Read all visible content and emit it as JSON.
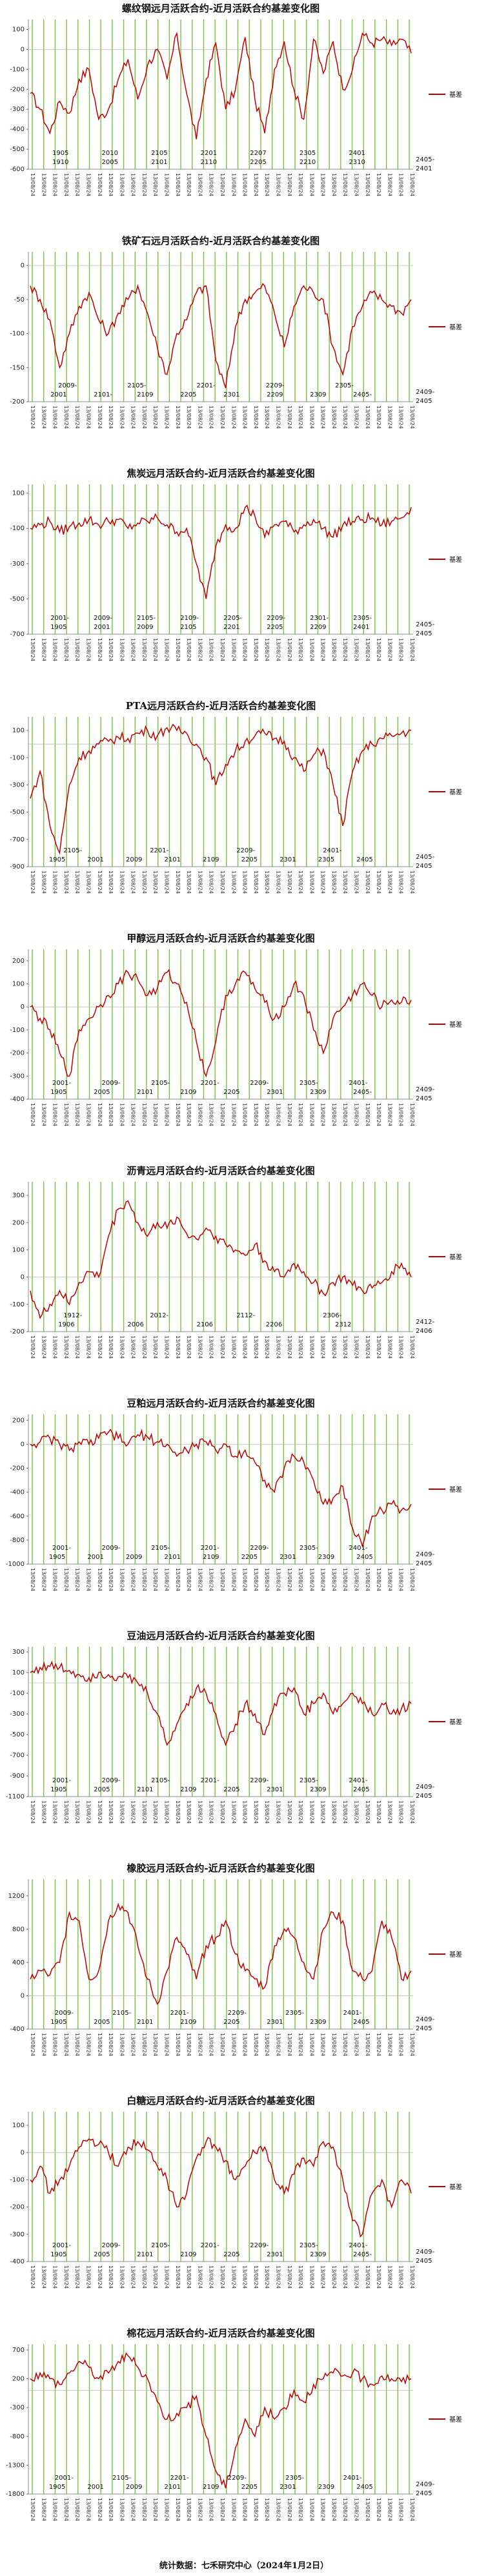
{
  "footer": "统计数据：七禾研究中心（2024年1月2日）",
  "xtick_label": "13/08/24",
  "series_color": "#c00000",
  "marker_color": "#7ac142",
  "chart_data": [
    {
      "type": "line",
      "title": "螺纹钢远月活跃合约-近月活跃合约基差变化图",
      "legend": "基差",
      "legend_position": "right",
      "yticks": [
        100,
        0,
        -100,
        -200,
        -300,
        -400,
        -500,
        -600
      ],
      "ylim": [
        -600,
        150
      ],
      "labels_top": [
        "1905",
        "2010",
        "2105",
        "2201",
        "2207",
        "2305",
        "2401"
      ],
      "labels_bottom": [
        "1910",
        "2005",
        "2101",
        "2110",
        "2205",
        "2210",
        "2310"
      ],
      "last_label_top": "2405-",
      "last_label_bottom": "2401",
      "series": [
        {
          "name": "基差",
          "values": [
            -220,
            -300,
            -420,
            -260,
            -320,
            -150,
            -100,
            -350,
            -300,
            -150,
            -50,
            -250,
            -80,
            0,
            -150,
            80,
            -220,
            -450,
            -150,
            30,
            -300,
            -200,
            60,
            -250,
            -420,
            -100,
            40,
            -200,
            -350,
            50,
            -120,
            40,
            -200,
            -100,
            80,
            30,
            50,
            20,
            50,
            -20
          ]
        }
      ]
    },
    {
      "type": "line",
      "title": "铁矿石远月活跃合约-近月活跃合约基差变化图",
      "legend": "基差",
      "legend_position": "right",
      "yticks": [
        0,
        -50,
        -100,
        -150,
        -200
      ],
      "ylim": [
        -200,
        20
      ],
      "labels_top": [
        "2009-",
        "2105-",
        "2201-",
        "2209-",
        "2305-"
      ],
      "labels_bottom": [
        "2001",
        "2101-",
        "2109",
        "2205",
        "2301",
        "2209",
        "2309",
        "2405-"
      ],
      "last_label_top": "2409-",
      "last_label_bottom": "2405",
      "series": [
        {
          "name": "基差",
          "values": [
            -30,
            -50,
            -80,
            -150,
            -100,
            -60,
            -40,
            -80,
            -100,
            -70,
            -50,
            -30,
            -70,
            -120,
            -160,
            -100,
            -80,
            -40,
            -30,
            -140,
            -180,
            -90,
            -50,
            -40,
            -30,
            -70,
            -120,
            -60,
            -30,
            -40,
            -50,
            -120,
            -160,
            -90,
            -60,
            -40,
            -50,
            -60,
            -70,
            -50
          ]
        }
      ]
    },
    {
      "type": "line",
      "title": "焦炭远月活跃合约-近月活跃合约基差变化图",
      "legend": "基差",
      "legend_position": "right",
      "yticks": [
        100,
        -100,
        -300,
        -500,
        -700
      ],
      "ylim": [
        -700,
        150
      ],
      "labels_top": [
        "2001-",
        "2009-",
        "2105-",
        "2109-",
        "2205-",
        "2209-",
        "2301-",
        "2305-"
      ],
      "labels_bottom": [
        "1905",
        "2001",
        "2009",
        "2105",
        "2201",
        "2205",
        "2209",
        "2401"
      ],
      "last_label_top": "2405-",
      "last_label_bottom": "2405",
      "series": [
        {
          "name": "基差",
          "values": [
            -100,
            -80,
            -60,
            -120,
            -90,
            -70,
            -50,
            -80,
            -60,
            -50,
            -100,
            -70,
            -60,
            -40,
            -80,
            -120,
            -100,
            -300,
            -500,
            -200,
            -80,
            -100,
            20,
            -30,
            -150,
            -80,
            -60,
            -120,
            -80,
            -50,
            -100,
            -150,
            -80,
            -60,
            -50,
            -40,
            -80,
            -60,
            -40,
            20
          ]
        }
      ]
    },
    {
      "type": "line",
      "title": "PTA远月活跃合约-近月活跃合约基差变化图",
      "legend": "基差",
      "legend_position": "right",
      "yticks": [
        100,
        -100,
        -300,
        -500,
        -700,
        -900
      ],
      "ylim": [
        -900,
        200
      ],
      "labels_top": [
        "2105-",
        "2201-",
        "2209-",
        "2401-"
      ],
      "labels_bottom": [
        "1905",
        "2001",
        "2009",
        "2101",
        "2109",
        "2205",
        "2301",
        "2305",
        "2405"
      ],
      "last_label_top": "2405-",
      "last_label_bottom": "2405",
      "series": [
        {
          "name": "基差",
          "values": [
            -400,
            -200,
            -600,
            -800,
            -300,
            -100,
            -50,
            0,
            20,
            50,
            40,
            80,
            100,
            60,
            120,
            100,
            80,
            0,
            -100,
            -300,
            -150,
            -50,
            20,
            60,
            80,
            40,
            20,
            -100,
            -200,
            -80,
            -40,
            -300,
            -600,
            -200,
            -50,
            0,
            40,
            60,
            80,
            100
          ]
        }
      ]
    },
    {
      "type": "line",
      "title": "甲醇远月活跃合约-近月活跃合约基差变化图",
      "legend": "基差",
      "legend_position": "right",
      "yticks": [
        200,
        100,
        0,
        -100,
        -200,
        -300,
        -400
      ],
      "ylim": [
        -400,
        250
      ],
      "labels_top": [
        "2001-",
        "2009-",
        "2105-",
        "2201-",
        "2209-",
        "2305-",
        "2401-"
      ],
      "labels_bottom": [
        "1905",
        "2005",
        "2101",
        "2109",
        "2205",
        "2301",
        "2309",
        "2405-"
      ],
      "last_label_top": "2409-",
      "last_label_bottom": "2405",
      "series": [
        {
          "name": "基差",
          "values": [
            0,
            -50,
            -100,
            -200,
            -300,
            -100,
            -50,
            0,
            50,
            100,
            150,
            120,
            50,
            80,
            150,
            100,
            20,
            -150,
            -300,
            -150,
            50,
            100,
            150,
            80,
            20,
            -50,
            0,
            100,
            50,
            -100,
            -200,
            -50,
            0,
            50,
            100,
            50,
            0,
            30,
            20,
            30
          ]
        }
      ]
    },
    {
      "type": "line",
      "title": "沥青远月活跃合约-近月活跃合约基差变化图",
      "legend": "基差",
      "legend_position": "right",
      "yticks": [
        300,
        200,
        100,
        0,
        -100,
        -200
      ],
      "ylim": [
        -200,
        350
      ],
      "labels_top": [
        "1912-",
        "2012-",
        "2112-",
        "2306-"
      ],
      "labels_bottom": [
        "1906",
        "2006",
        "2106",
        "2206",
        "2312"
      ],
      "last_label_top": "2412-",
      "last_label_bottom": "2406",
      "series": [
        {
          "name": "基差",
          "values": [
            -50,
            -150,
            -100,
            -50,
            -100,
            -20,
            20,
            0,
            150,
            250,
            280,
            200,
            150,
            200,
            180,
            220,
            160,
            140,
            180,
            150,
            120,
            100,
            80,
            120,
            60,
            20,
            0,
            50,
            20,
            -20,
            -60,
            -20,
            0,
            -30,
            -50,
            -40,
            -20,
            20,
            50,
            0
          ]
        }
      ]
    },
    {
      "type": "line",
      "title": "豆粕远月活跃合约-近月活跃合约基差变化图",
      "legend": "基差",
      "legend_position": "right",
      "yticks": [
        200,
        0,
        -200,
        -400,
        -600,
        -800,
        -1000
      ],
      "ylim": [
        -1000,
        250
      ],
      "labels_top": [
        "2001-",
        "2009-",
        "2105-",
        "2201-",
        "2209-",
        "2305-",
        "2401-"
      ],
      "labels_bottom": [
        "1905",
        "2001",
        "2009",
        "2101",
        "2109",
        "2205",
        "2301",
        "2309",
        "2405"
      ],
      "last_label_top": "2409-",
      "last_label_bottom": "2405",
      "series": [
        {
          "name": "基差",
          "values": [
            0,
            20,
            50,
            0,
            -50,
            20,
            0,
            50,
            100,
            50,
            0,
            80,
            60,
            20,
            0,
            -100,
            -50,
            0,
            20,
            -50,
            0,
            -100,
            -50,
            -150,
            -300,
            -400,
            -200,
            -100,
            -150,
            -300,
            -500,
            -450,
            -350,
            -700,
            -850,
            -600,
            -550,
            -500,
            -550,
            -500
          ]
        }
      ]
    },
    {
      "type": "line",
      "title": "豆油远月活跃合约-近月活跃合约基差变化图",
      "legend": "基差",
      "legend_position": "right",
      "yticks": [
        300,
        100,
        -100,
        -300,
        -500,
        -700,
        -900,
        -1100
      ],
      "ylim": [
        -1100,
        350
      ],
      "labels_top": [
        "2001-",
        "2009-",
        "2105-",
        "2201-",
        "2209-",
        "2305-",
        "2401-"
      ],
      "labels_bottom": [
        "1905",
        "2005",
        "2101",
        "2109",
        "2205",
        "2301",
        "2309",
        "2405"
      ],
      "last_label_top": "2409-",
      "last_label_bottom": "2405",
      "series": [
        {
          "name": "基差",
          "values": [
            100,
            150,
            160,
            150,
            120,
            80,
            50,
            100,
            80,
            60,
            50,
            0,
            -100,
            -300,
            -600,
            -400,
            -200,
            -50,
            -100,
            -300,
            -600,
            -400,
            -200,
            -300,
            -500,
            -200,
            -100,
            -50,
            -300,
            -200,
            -100,
            -300,
            -200,
            -100,
            -200,
            -300,
            -200,
            -300,
            -250,
            -200
          ]
        }
      ]
    },
    {
      "type": "line",
      "title": "橡胶远月活跃合约-近月活跃合约基差变化图",
      "legend": "基差",
      "legend_position": "right",
      "yticks": [
        1200,
        800,
        400,
        0,
        -400
      ],
      "ylim": [
        -400,
        1400
      ],
      "labels_top": [
        "2009-",
        "2105-",
        "2201-",
        "2209-",
        "2305-",
        "2401-"
      ],
      "labels_bottom": [
        "1905",
        "2005",
        "2101",
        "2109",
        "2205",
        "2301",
        "2309",
        "2405"
      ],
      "last_label_top": "2409-",
      "last_label_bottom": "2405",
      "series": [
        {
          "name": "基差",
          "values": [
            200,
            300,
            250,
            400,
            1000,
            900,
            200,
            300,
            900,
            1100,
            1000,
            600,
            200,
            -100,
            300,
            700,
            500,
            200,
            600,
            700,
            900,
            500,
            300,
            200,
            100,
            600,
            800,
            700,
            400,
            200,
            800,
            1000,
            900,
            300,
            200,
            300,
            900,
            700,
            200,
            300
          ]
        }
      ]
    },
    {
      "type": "line",
      "title": "白糖远月活跃合约-近月活跃合约基差变化图",
      "legend": "基差",
      "legend_position": "right",
      "yticks": [
        100,
        0,
        -100,
        -200,
        -300,
        -400
      ],
      "ylim": [
        -400,
        150
      ],
      "labels_top": [
        "2001-",
        "2009-",
        "2105-",
        "2201-",
        "2209-",
        "2305-",
        "2401-"
      ],
      "labels_bottom": [
        "1905",
        "2005",
        "2101",
        "2109",
        "2205",
        "2301",
        "2309",
        "2405-"
      ],
      "last_label_top": "2409-",
      "last_label_bottom": "2405",
      "series": [
        {
          "name": "基差",
          "values": [
            -100,
            -50,
            -150,
            -100,
            -50,
            20,
            50,
            30,
            0,
            -50,
            20,
            40,
            10,
            -50,
            -100,
            -200,
            -150,
            -20,
            40,
            20,
            -30,
            -100,
            -50,
            0,
            20,
            -100,
            -150,
            -80,
            -20,
            -50,
            40,
            20,
            -100,
            -250,
            -300,
            -150,
            -100,
            -200,
            -100,
            -150
          ]
        }
      ]
    },
    {
      "type": "line",
      "title": "棉花远月活跃合约-近月活跃合约基差变化图",
      "legend": "基差",
      "legend_position": "right",
      "yticks": [
        700,
        200,
        -300,
        -800,
        -1300,
        -1800
      ],
      "ylim": [
        -1800,
        800
      ],
      "labels_top": [
        "2001-",
        "2105-",
        "2201-",
        "2209-",
        "2305-",
        "2401-"
      ],
      "labels_bottom": [
        "1905",
        "2001",
        "2009",
        "2101",
        "2109",
        "2205",
        "2301",
        "2309",
        "2405"
      ],
      "last_label_top": "2409-",
      "last_label_bottom": "2405",
      "series": [
        {
          "name": "基差",
          "values": [
            200,
            300,
            200,
            100,
            300,
            500,
            400,
            200,
            300,
            500,
            600,
            400,
            200,
            -200,
            -500,
            -400,
            -300,
            -100,
            -800,
            -1400,
            -1700,
            -1000,
            -500,
            -800,
            -300,
            -500,
            -300,
            0,
            -200,
            100,
            200,
            300,
            250,
            300,
            200,
            100,
            250,
            200,
            150,
            200
          ]
        }
      ]
    }
  ]
}
